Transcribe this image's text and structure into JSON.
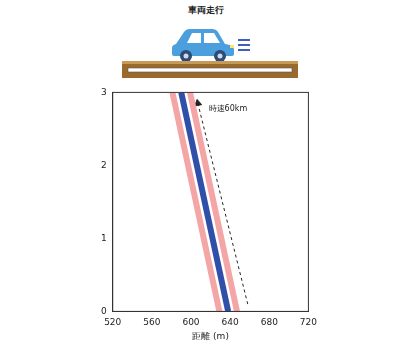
{
  "chart_data": {
    "type": "line",
    "title": "車両走行",
    "x_label": "距離 (m)",
    "xlim": [
      520,
      720
    ],
    "xticks": [
      520,
      560,
      600,
      640,
      680,
      720
    ],
    "ylim": [
      0,
      3
    ],
    "yticks": [
      0,
      1,
      2,
      3
    ],
    "grid": false,
    "series": [
      {
        "color": "#f4a6a6",
        "x": [
          629,
          581
        ],
        "values": [
          0,
          3
        ]
      },
      {
        "color": "#f4a6a6",
        "x": [
          647,
          599
        ],
        "values": [
          0,
          3
        ]
      },
      {
        "color": "#2f4fa8",
        "x": [
          638,
          590
        ],
        "values": [
          0,
          3
        ]
      },
      {
        "color": "#222222",
        "line_style": "dashed",
        "marker": "arrow",
        "x": [
          658,
          607
        ],
        "values": [
          0.1,
          2.85
        ]
      }
    ],
    "annotations": [
      {
        "text": "時速60km",
        "x": 618,
        "y": 2.78
      }
    ]
  }
}
